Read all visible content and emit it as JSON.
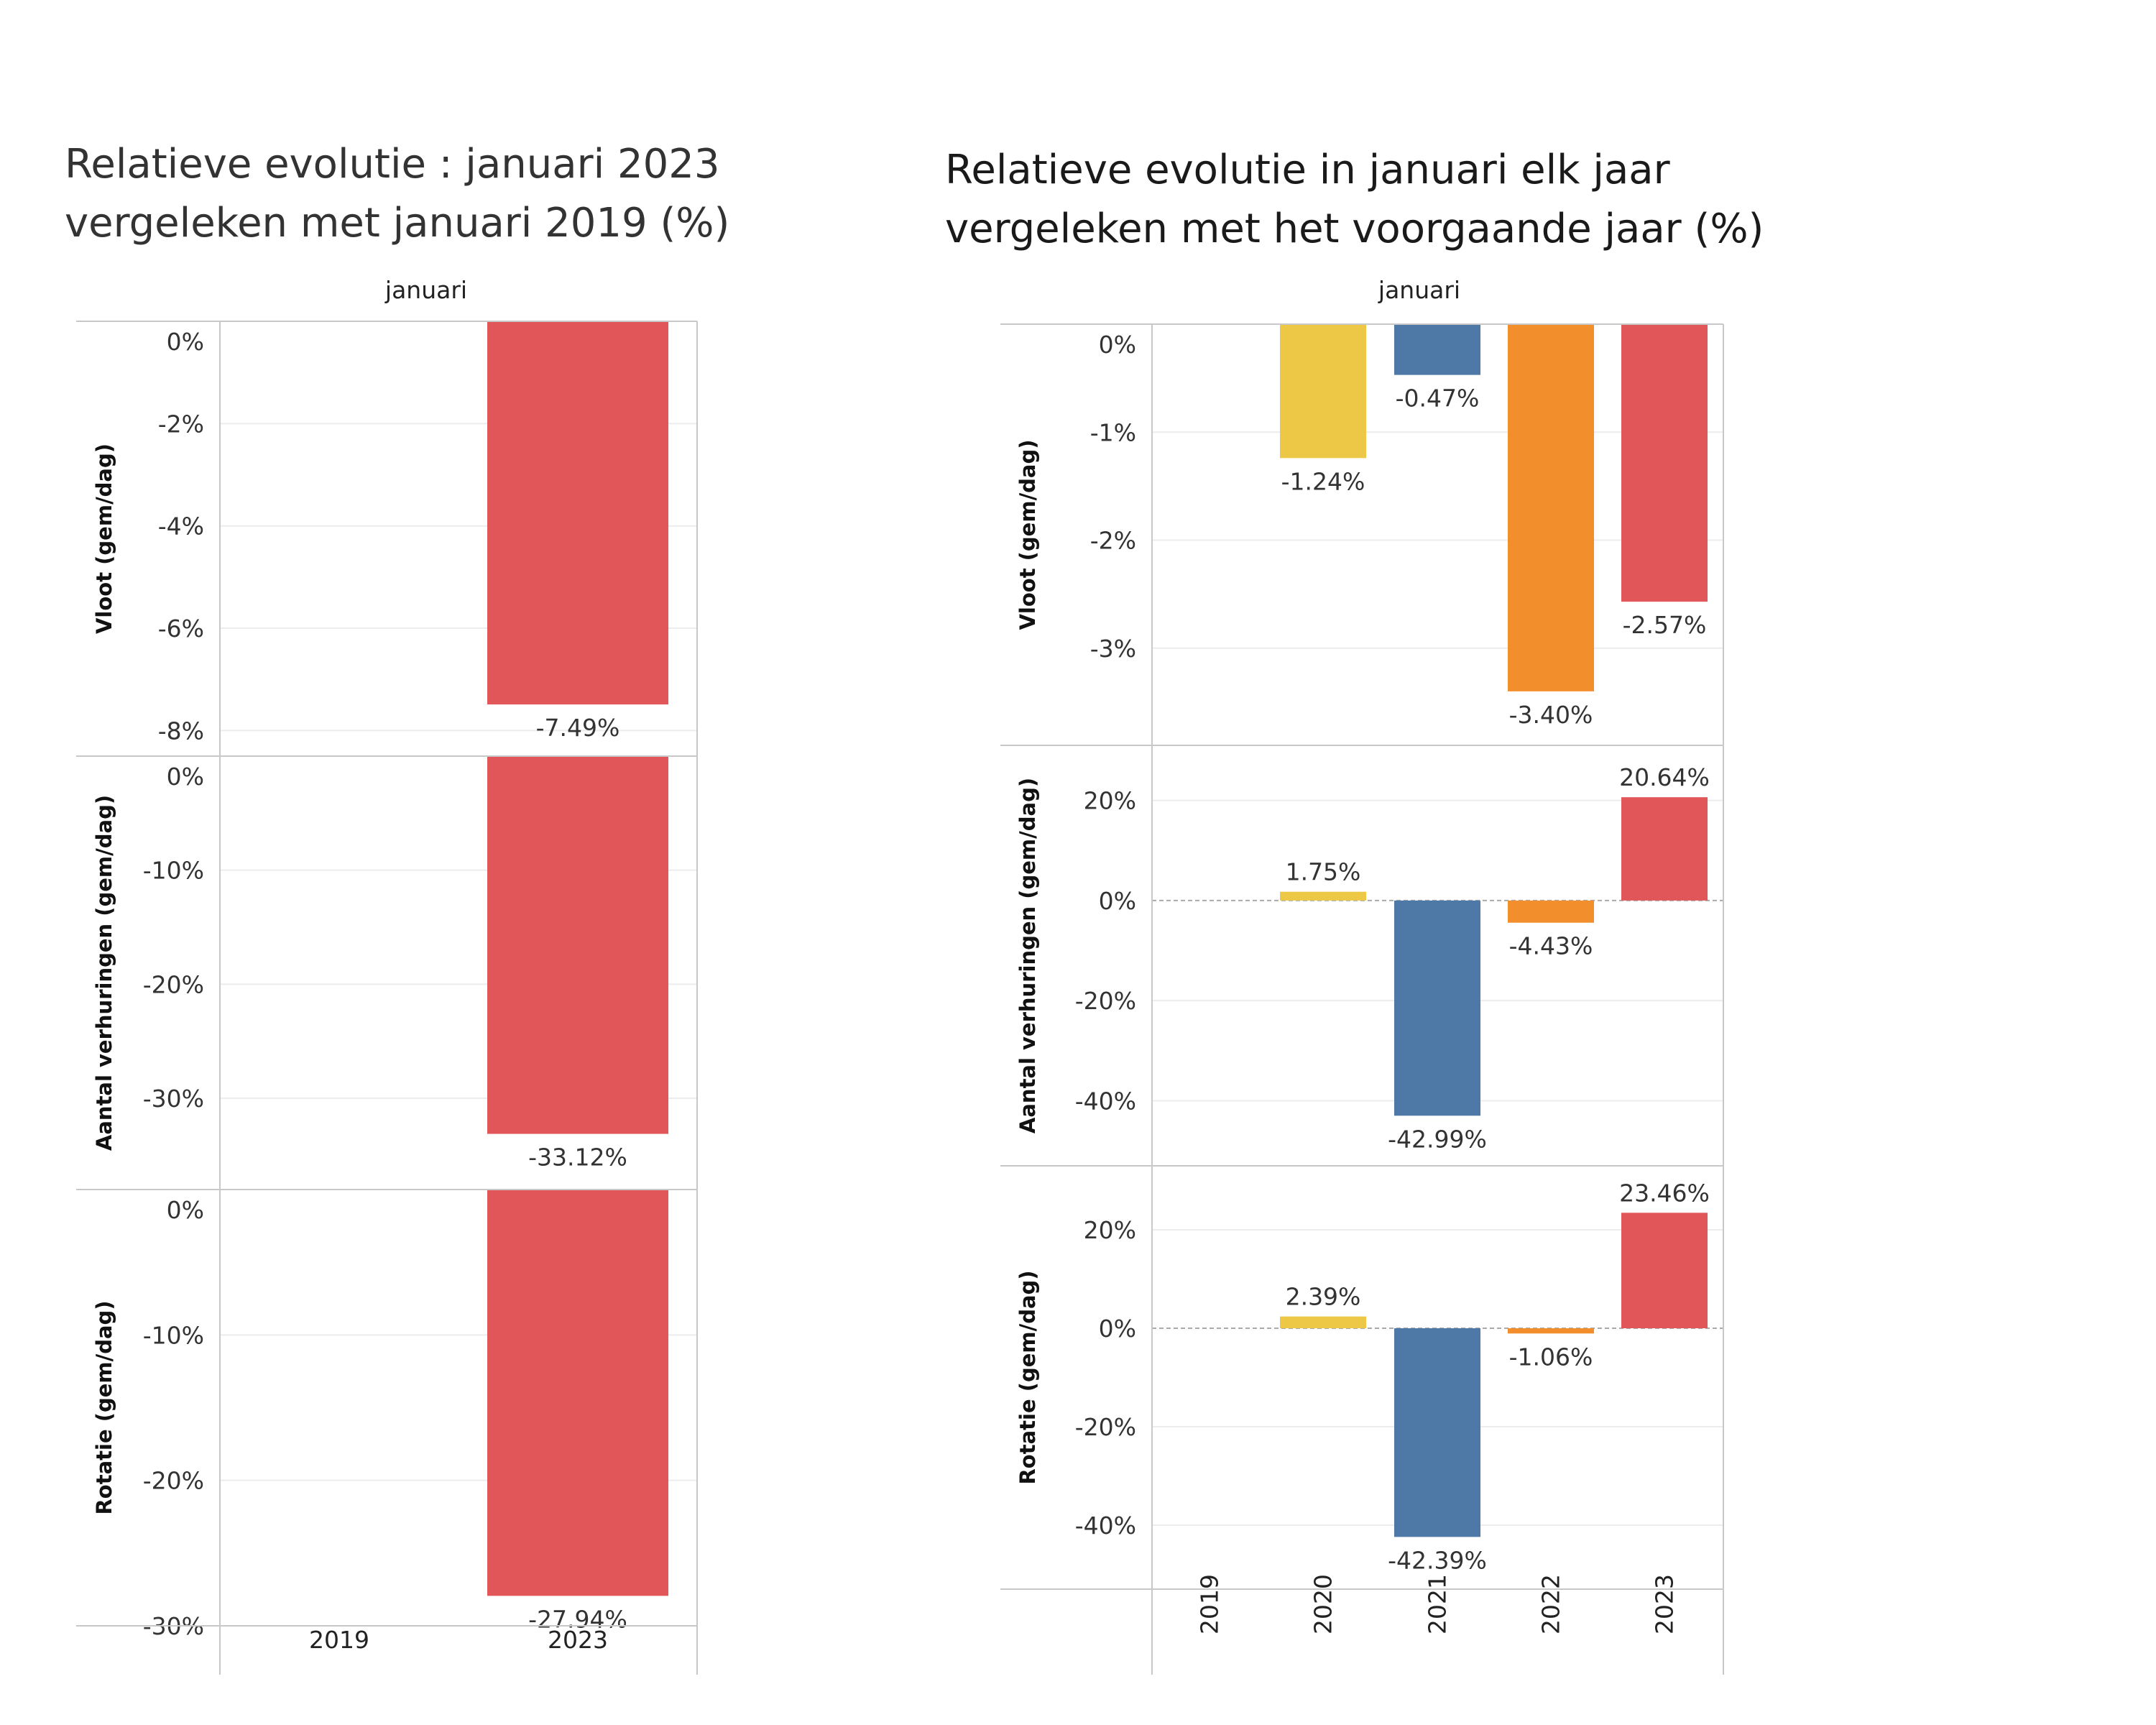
{
  "left_title": [
    "Relatieve evolutie : januari 2023",
    "vergeleken met januari 2019 (%)"
  ],
  "right_title": [
    "Relatieve evolutie in januari elk jaar",
    "vergeleken met het voorgaande jaar (%)"
  ],
  "colors": {
    "2020": "#ecc846",
    "2021": "#4e79a7",
    "2022": "#f28e2b",
    "2023": "#e15759",
    "grid": "#ececec",
    "frame": "#c8c8c8",
    "zero": "#aaaaaa"
  },
  "chart_data": [
    {
      "type": "bar",
      "title": "Relatieve evolutie : januari 2023 vergeleken met januari 2019 (%)",
      "header": "januari",
      "categories": [
        "2019",
        "2023"
      ],
      "series": [
        {
          "name": "Vloot (gem/dag)",
          "values": [
            null,
            -7.49
          ],
          "labels": [
            "",
            "-7.49%"
          ],
          "ylim": [
            -8.5,
            0
          ],
          "ticks": [
            0,
            -2,
            -4,
            -6,
            -8
          ],
          "tick_labels": [
            "0%",
            "-2%",
            "-4%",
            "-6%",
            "-8%"
          ]
        },
        {
          "name": "Aantal verhuringen (gem/dag)",
          "values": [
            null,
            -33.12
          ],
          "labels": [
            "",
            "-33.12%"
          ],
          "ylim": [
            -38,
            0
          ],
          "ticks": [
            0,
            -10,
            -20,
            -30
          ],
          "tick_labels": [
            "0%",
            "-10%",
            "-20%",
            "-30%"
          ]
        },
        {
          "name": "Rotatie (gem/dag)",
          "values": [
            null,
            -27.94
          ],
          "labels": [
            "",
            "-27.94%"
          ],
          "ylim": [
            -30,
            0
          ],
          "ticks": [
            0,
            -10,
            -20,
            -30
          ],
          "tick_labels": [
            "0%",
            "-10%",
            "-20%",
            "-30%"
          ]
        }
      ]
    },
    {
      "type": "bar",
      "title": "Relatieve evolutie in januari elk jaar vergeleken met het voorgaande jaar (%)",
      "header": "januari",
      "categories": [
        "2019",
        "2020",
        "2021",
        "2022",
        "2023"
      ],
      "series": [
        {
          "name": "Vloot (gem/dag)",
          "values": [
            null,
            -1.24,
            -0.47,
            -3.4,
            -2.57
          ],
          "labels": [
            "",
            "-1.24%",
            "-0.47%",
            "-3.40%",
            "-2.57%"
          ],
          "ylim": [
            -3.9,
            0
          ],
          "ticks": [
            0,
            -1,
            -2,
            -3
          ],
          "tick_labels": [
            "0%",
            "-1%",
            "-2%",
            "-3%"
          ]
        },
        {
          "name": "Aantal verhuringen (gem/dag)",
          "values": [
            null,
            1.75,
            -42.99,
            -4.43,
            20.64
          ],
          "labels": [
            "",
            "1.75%",
            "-42.99%",
            "-4.43%",
            "20.64%"
          ],
          "ylim": [
            -53,
            31
          ],
          "ticks": [
            20,
            0,
            -20,
            -40
          ],
          "tick_labels": [
            "20%",
            "0%",
            "-20%",
            "-40%"
          ]
        },
        {
          "name": "Rotatie (gem/dag)",
          "values": [
            null,
            2.39,
            -42.39,
            -1.06,
            23.46
          ],
          "labels": [
            "",
            "2.39%",
            "-42.39%",
            "-1.06%",
            "23.46%"
          ],
          "ylim": [
            -53,
            33
          ],
          "ticks": [
            20,
            0,
            -20,
            -40
          ],
          "tick_labels": [
            "20%",
            "0%",
            "-20%",
            "-40%"
          ]
        }
      ]
    }
  ]
}
